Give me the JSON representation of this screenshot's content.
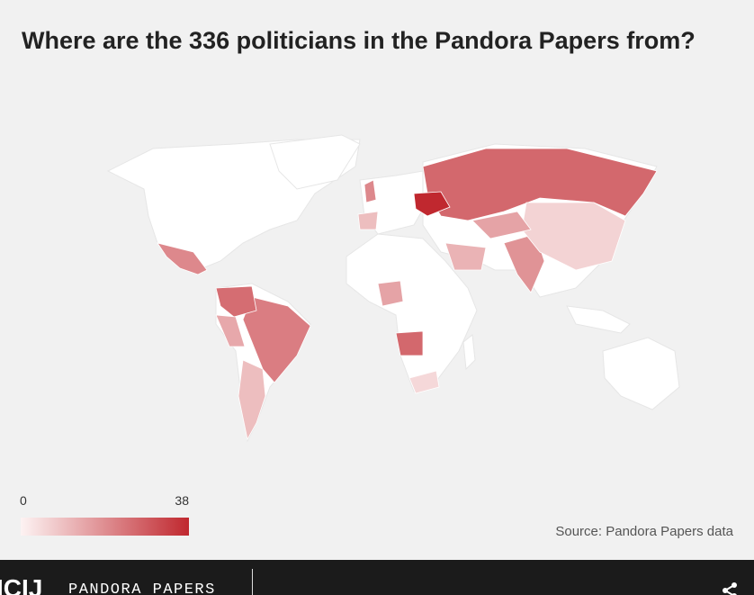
{
  "title": "Where are the 336 politicians in the Pandora Papers from?",
  "map": {
    "values": [
      26,
      38,
      22,
      20,
      25,
      10,
      18,
      26,
      15,
      6,
      20,
      15,
      12,
      14,
      10,
      5
    ]
  },
  "legend": {
    "min": 0,
    "max": 38
  },
  "source": "Source: Pandora Papers data",
  "footer": {
    "logo": "ICIJ",
    "section": "PANDORA PAPERS"
  }
}
